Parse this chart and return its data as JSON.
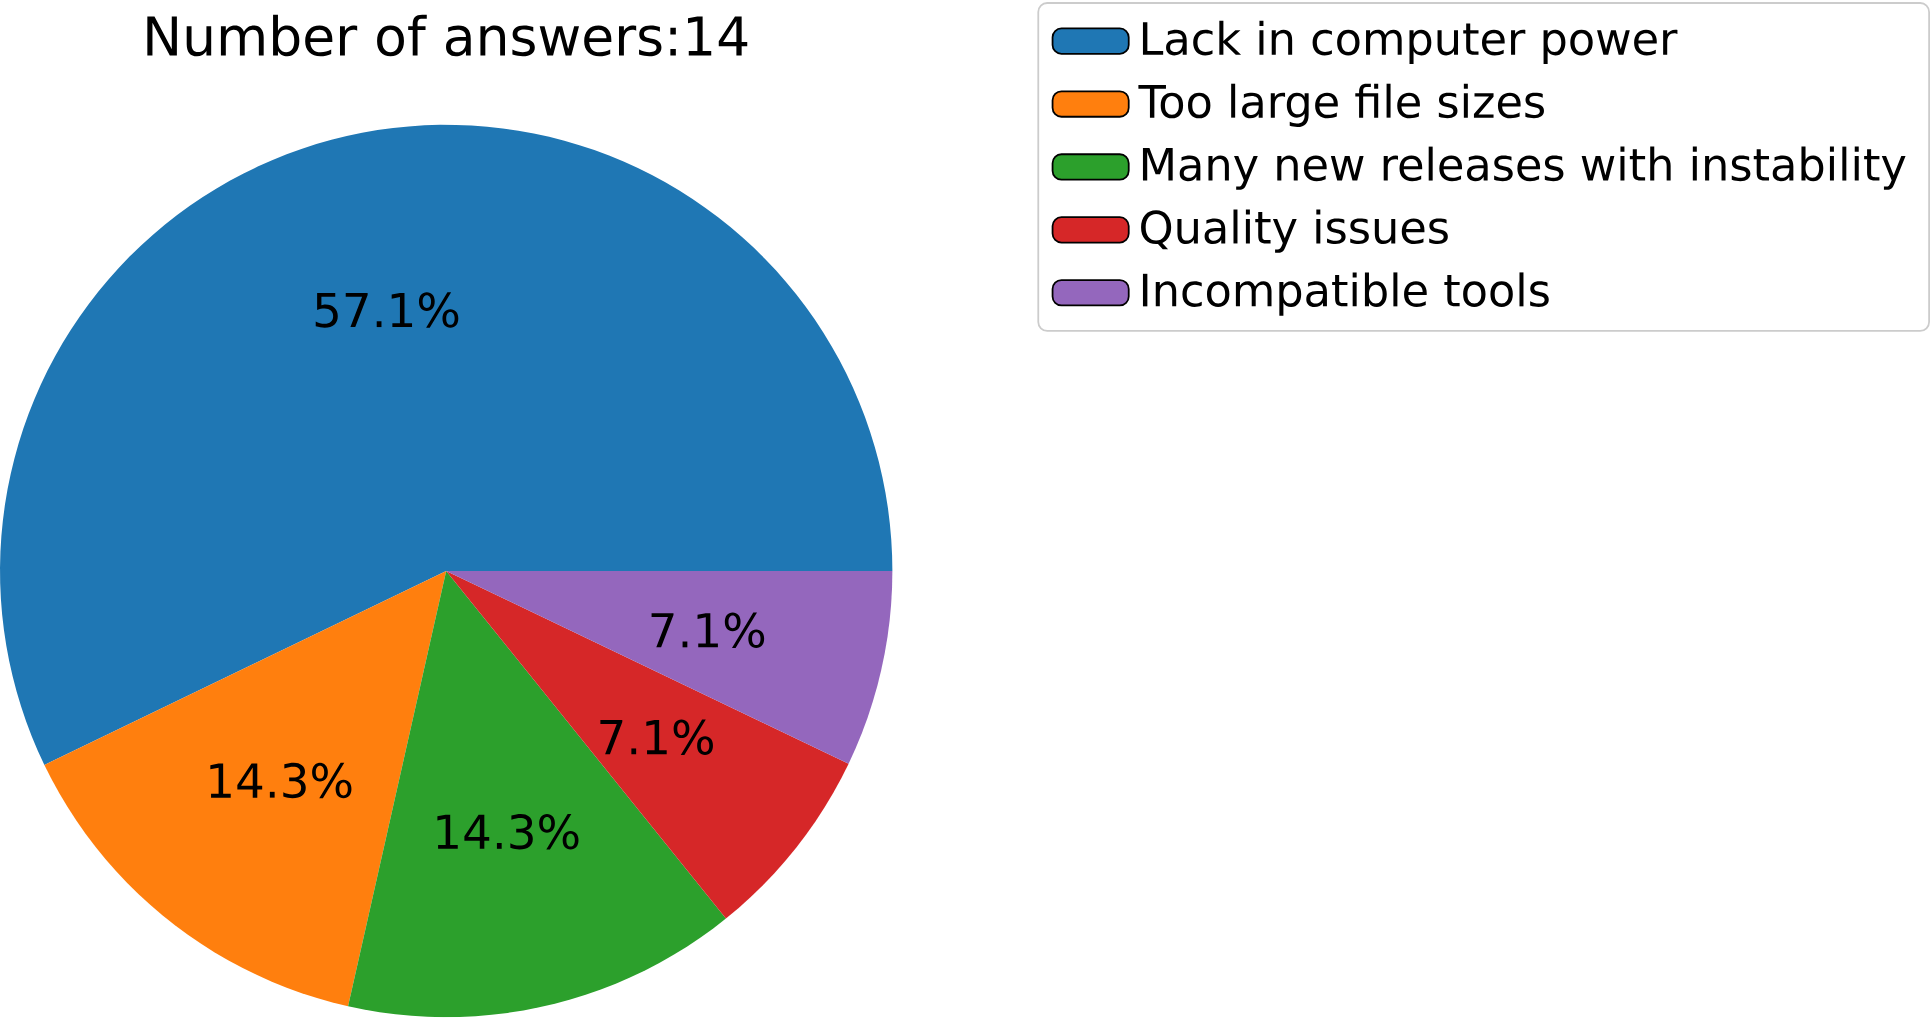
{
  "chart_data": {
    "type": "pie",
    "title": "Number of answers:14",
    "categories": [
      "Lack in computer power",
      "Too large file sizes",
      "Many new releases with instability",
      "Quality issues",
      "Incompatible tools"
    ],
    "values": [
      57.1,
      14.3,
      14.3,
      7.1,
      7.1
    ],
    "value_labels": [
      "57.1%",
      "14.3%",
      "14.3%",
      "7.1%",
      "7.1%"
    ],
    "colors": [
      "#1f77b4",
      "#ff7f0e",
      "#2ca02c",
      "#d62728",
      "#9467bd"
    ],
    "legend": "top right"
  }
}
